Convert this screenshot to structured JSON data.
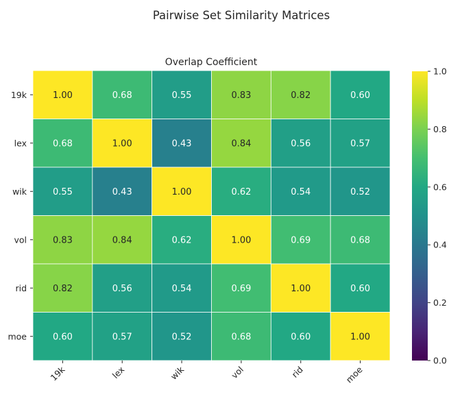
{
  "figure_title": "Pairwise Set Similarity Matrices",
  "chart_data": {
    "type": "heatmap",
    "title": "Overlap Coefficient",
    "xlabel": "",
    "ylabel": "",
    "x_categories": [
      "19k",
      "lex",
      "wik",
      "vol",
      "rid",
      "moe"
    ],
    "y_categories": [
      "19k",
      "lex",
      "wik",
      "vol",
      "rid",
      "moe"
    ],
    "values": [
      [
        1.0,
        0.68,
        0.55,
        0.83,
        0.82,
        0.6
      ],
      [
        0.68,
        1.0,
        0.43,
        0.84,
        0.56,
        0.57
      ],
      [
        0.55,
        0.43,
        1.0,
        0.62,
        0.54,
        0.52
      ],
      [
        0.83,
        0.84,
        0.62,
        1.0,
        0.69,
        0.68
      ],
      [
        0.82,
        0.56,
        0.54,
        0.69,
        1.0,
        0.6
      ],
      [
        0.6,
        0.57,
        0.52,
        0.68,
        0.6,
        1.0
      ]
    ],
    "value_format": "0.00",
    "colormap": "viridis",
    "colorbar": {
      "range": [
        0.0,
        1.0
      ],
      "ticks": [
        "0.0",
        "0.2",
        "0.4",
        "0.6",
        "0.8",
        "1.0"
      ],
      "position": "right"
    },
    "cell_border_color": "#ffffff",
    "grid": false
  }
}
